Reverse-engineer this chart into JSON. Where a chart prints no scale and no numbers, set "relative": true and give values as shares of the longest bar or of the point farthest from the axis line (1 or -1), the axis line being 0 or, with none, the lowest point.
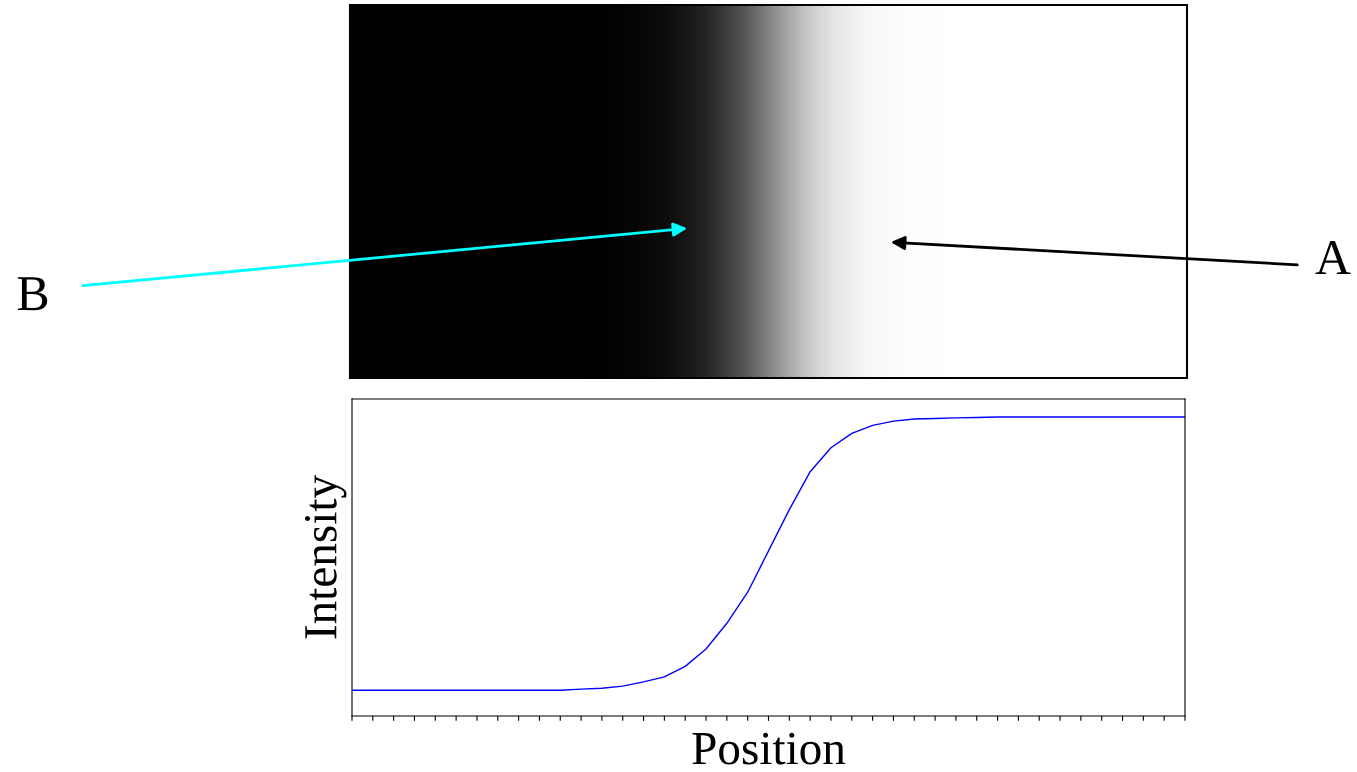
{
  "chart_data": {
    "type": "line",
    "relative": true,
    "xlabel": "Position",
    "ylabel": "Intensity",
    "annotations": [
      "B",
      "A"
    ],
    "categories": [
      null,
      null,
      null,
      null,
      null,
      null,
      null,
      null,
      null,
      null,
      null,
      null,
      null,
      null,
      null,
      null,
      null,
      null,
      null,
      null,
      null,
      null,
      null,
      null,
      null,
      null,
      null,
      null,
      null,
      null,
      null,
      null,
      null,
      null,
      null,
      null,
      null,
      null,
      null,
      null,
      null
    ],
    "series": [
      {
        "color": "#0000ff",
        "values": [
          0.086,
          0.086,
          0.086,
          0.086,
          0.086,
          0.086,
          0.086,
          0.086,
          0.086,
          0.086,
          0.086,
          0.09,
          0.093,
          0.1,
          0.114,
          0.131,
          0.166,
          0.224,
          0.31,
          0.414,
          0.552,
          0.69,
          0.817,
          0.897,
          0.945,
          0.972,
          0.986,
          0.993,
          0.995,
          0.997,
          0.998,
          1,
          1,
          1,
          1,
          1,
          1,
          1,
          1,
          1,
          1
        ]
      }
    ]
  }
}
